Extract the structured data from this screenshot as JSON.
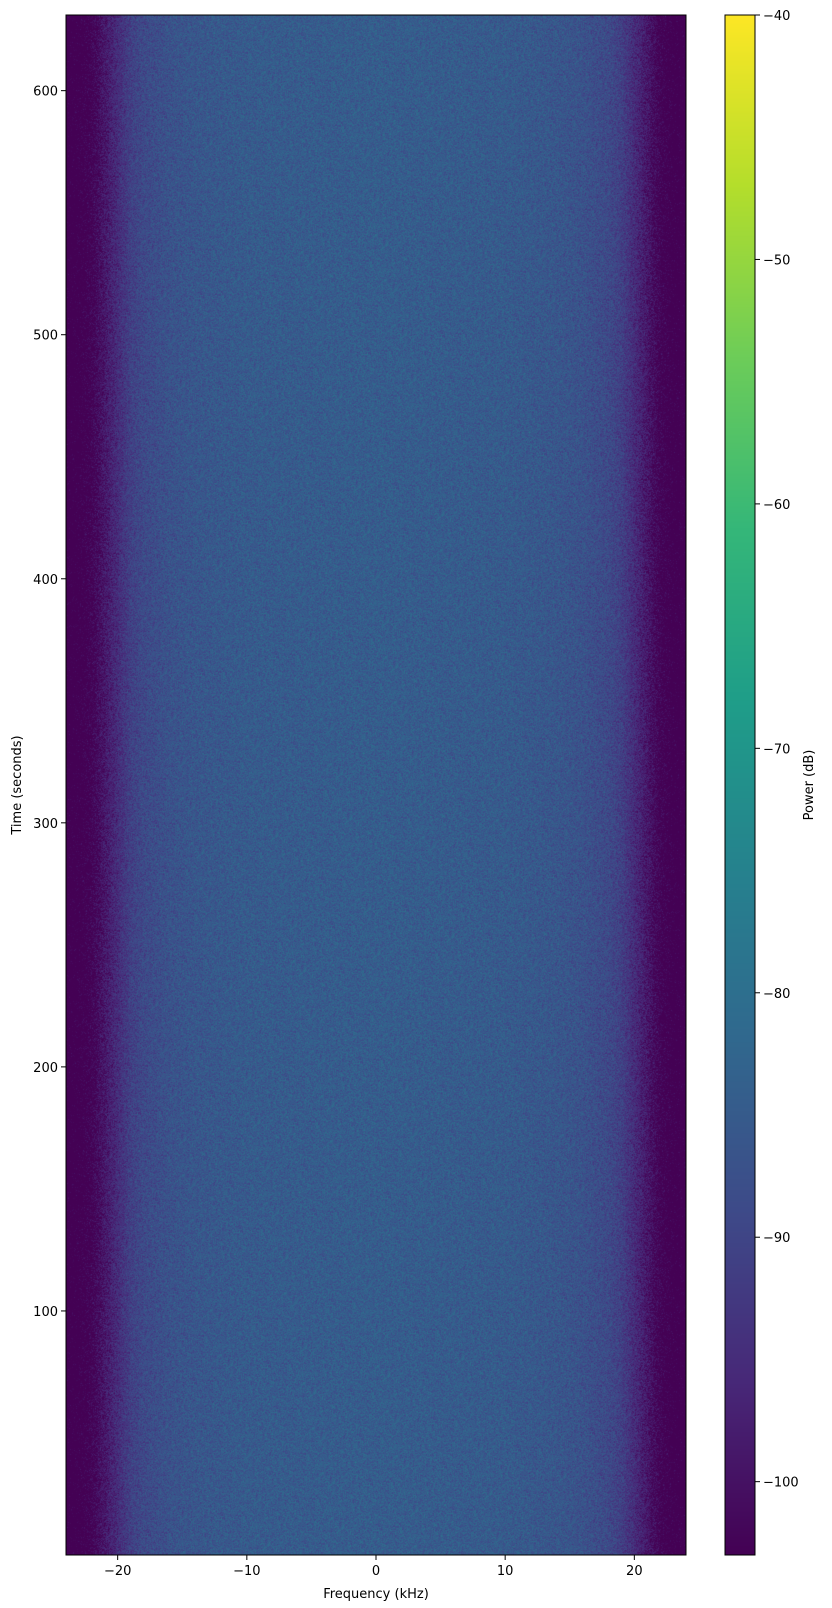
{
  "chart_data": {
    "type": "heatmap",
    "title": "",
    "xlabel": "Frequency (kHz)",
    "ylabel": "Time (seconds)",
    "xlim": [
      -24,
      24
    ],
    "ylim": [
      0,
      631
    ],
    "xticks": [
      -20,
      -10,
      0,
      10,
      20
    ],
    "yticks": [
      100,
      200,
      300,
      400,
      500,
      600
    ],
    "xtick_labels": [
      "−20",
      "−10",
      "0",
      "10",
      "20"
    ],
    "ytick_labels": [
      "100",
      "200",
      "300",
      "400",
      "500",
      "600"
    ],
    "colormap": "viridis",
    "colorbar": {
      "label": "Power (dB)",
      "range": [
        -103,
        -40
      ],
      "ticks": [
        -40,
        -50,
        -60,
        -70,
        -80,
        -90,
        -100
      ],
      "tick_labels": [
        "−40",
        "−50",
        "−60",
        "−70",
        "−80",
        "−90",
        "−100"
      ]
    },
    "mean_power_profile_db": {
      "frequency_khz": [
        -24,
        -23,
        -22,
        -21,
        -20,
        -19,
        -18,
        -16,
        -14,
        -10,
        0,
        10,
        14,
        16,
        18,
        19,
        20,
        21,
        22,
        23,
        24
      ],
      "power_db": [
        -106,
        -105,
        -103,
        -99,
        -95,
        -91,
        -89,
        -87,
        -86,
        -85,
        -84.5,
        -85,
        -86,
        -87,
        -89,
        -91,
        -95,
        -99,
        -103,
        -105,
        -106
      ]
    },
    "noise_spread_db": 3,
    "grid": false
  }
}
